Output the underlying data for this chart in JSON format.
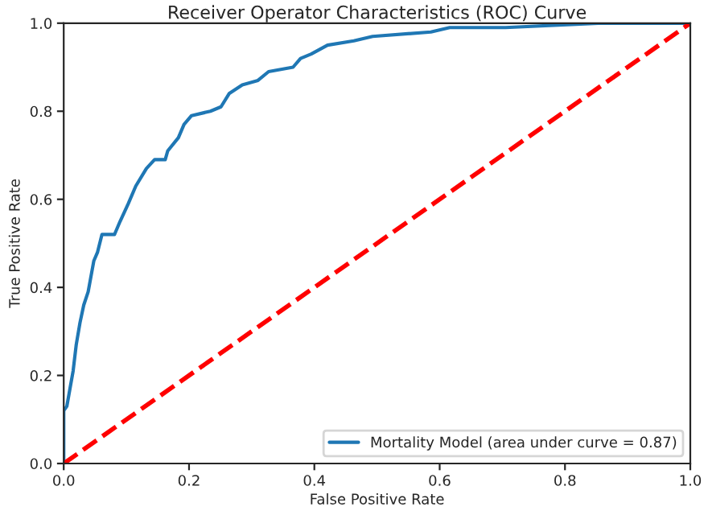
{
  "chart_data": {
    "type": "line",
    "title": "Receiver Operator Characteristics (ROC) Curve",
    "xlabel": "False Positive Rate",
    "ylabel": "True Positive Rate",
    "xlim": [
      0,
      1
    ],
    "ylim": [
      0,
      1
    ],
    "xticks": [
      {
        "value": 0,
        "label": "0.0"
      },
      {
        "value": 0.2,
        "label": "0.2"
      },
      {
        "value": 0.4,
        "label": "0.4"
      },
      {
        "value": 0.6,
        "label": "0.6"
      },
      {
        "value": 0.8,
        "label": "0.8"
      },
      {
        "value": 1,
        "label": "1.0"
      }
    ],
    "yticks": [
      {
        "value": 0,
        "label": "0.0"
      },
      {
        "value": 0.2,
        "label": "0.2"
      },
      {
        "value": 0.4,
        "label": "0.4"
      },
      {
        "value": 0.6,
        "label": "0.6"
      },
      {
        "value": 0.8,
        "label": "0.8"
      },
      {
        "value": 1,
        "label": "1.0"
      }
    ],
    "legend": "bottom right",
    "series": [
      {
        "name": "Mortality Model (area under curve = 0.87)",
        "color": "#1f77b4",
        "line_style": "solid",
        "x": [
          0,
          0,
          0.005,
          0.01,
          0.015,
          0.02,
          0.026,
          0.032,
          0.039,
          0.048,
          0.054,
          0.061,
          0.081,
          0.09,
          0.103,
          0.115,
          0.132,
          0.145,
          0.162,
          0.166,
          0.183,
          0.192,
          0.204,
          0.234,
          0.251,
          0.264,
          0.285,
          0.31,
          0.327,
          0.366,
          0.378,
          0.395,
          0.421,
          0.463,
          0.493,
          0.586,
          0.616,
          0.705,
          0.853,
          1.0
        ],
        "values": [
          0,
          0.12,
          0.13,
          0.17,
          0.21,
          0.27,
          0.32,
          0.36,
          0.39,
          0.46,
          0.48,
          0.52,
          0.52,
          0.55,
          0.59,
          0.63,
          0.67,
          0.69,
          0.69,
          0.71,
          0.74,
          0.77,
          0.79,
          0.8,
          0.81,
          0.84,
          0.86,
          0.87,
          0.89,
          0.9,
          0.92,
          0.93,
          0.95,
          0.96,
          0.97,
          0.98,
          0.99,
          0.99,
          1.0,
          1.0
        ]
      },
      {
        "color": "#ff0000",
        "line_style": "dashed",
        "x": [
          0,
          1
        ],
        "values": [
          0,
          1
        ]
      }
    ]
  }
}
